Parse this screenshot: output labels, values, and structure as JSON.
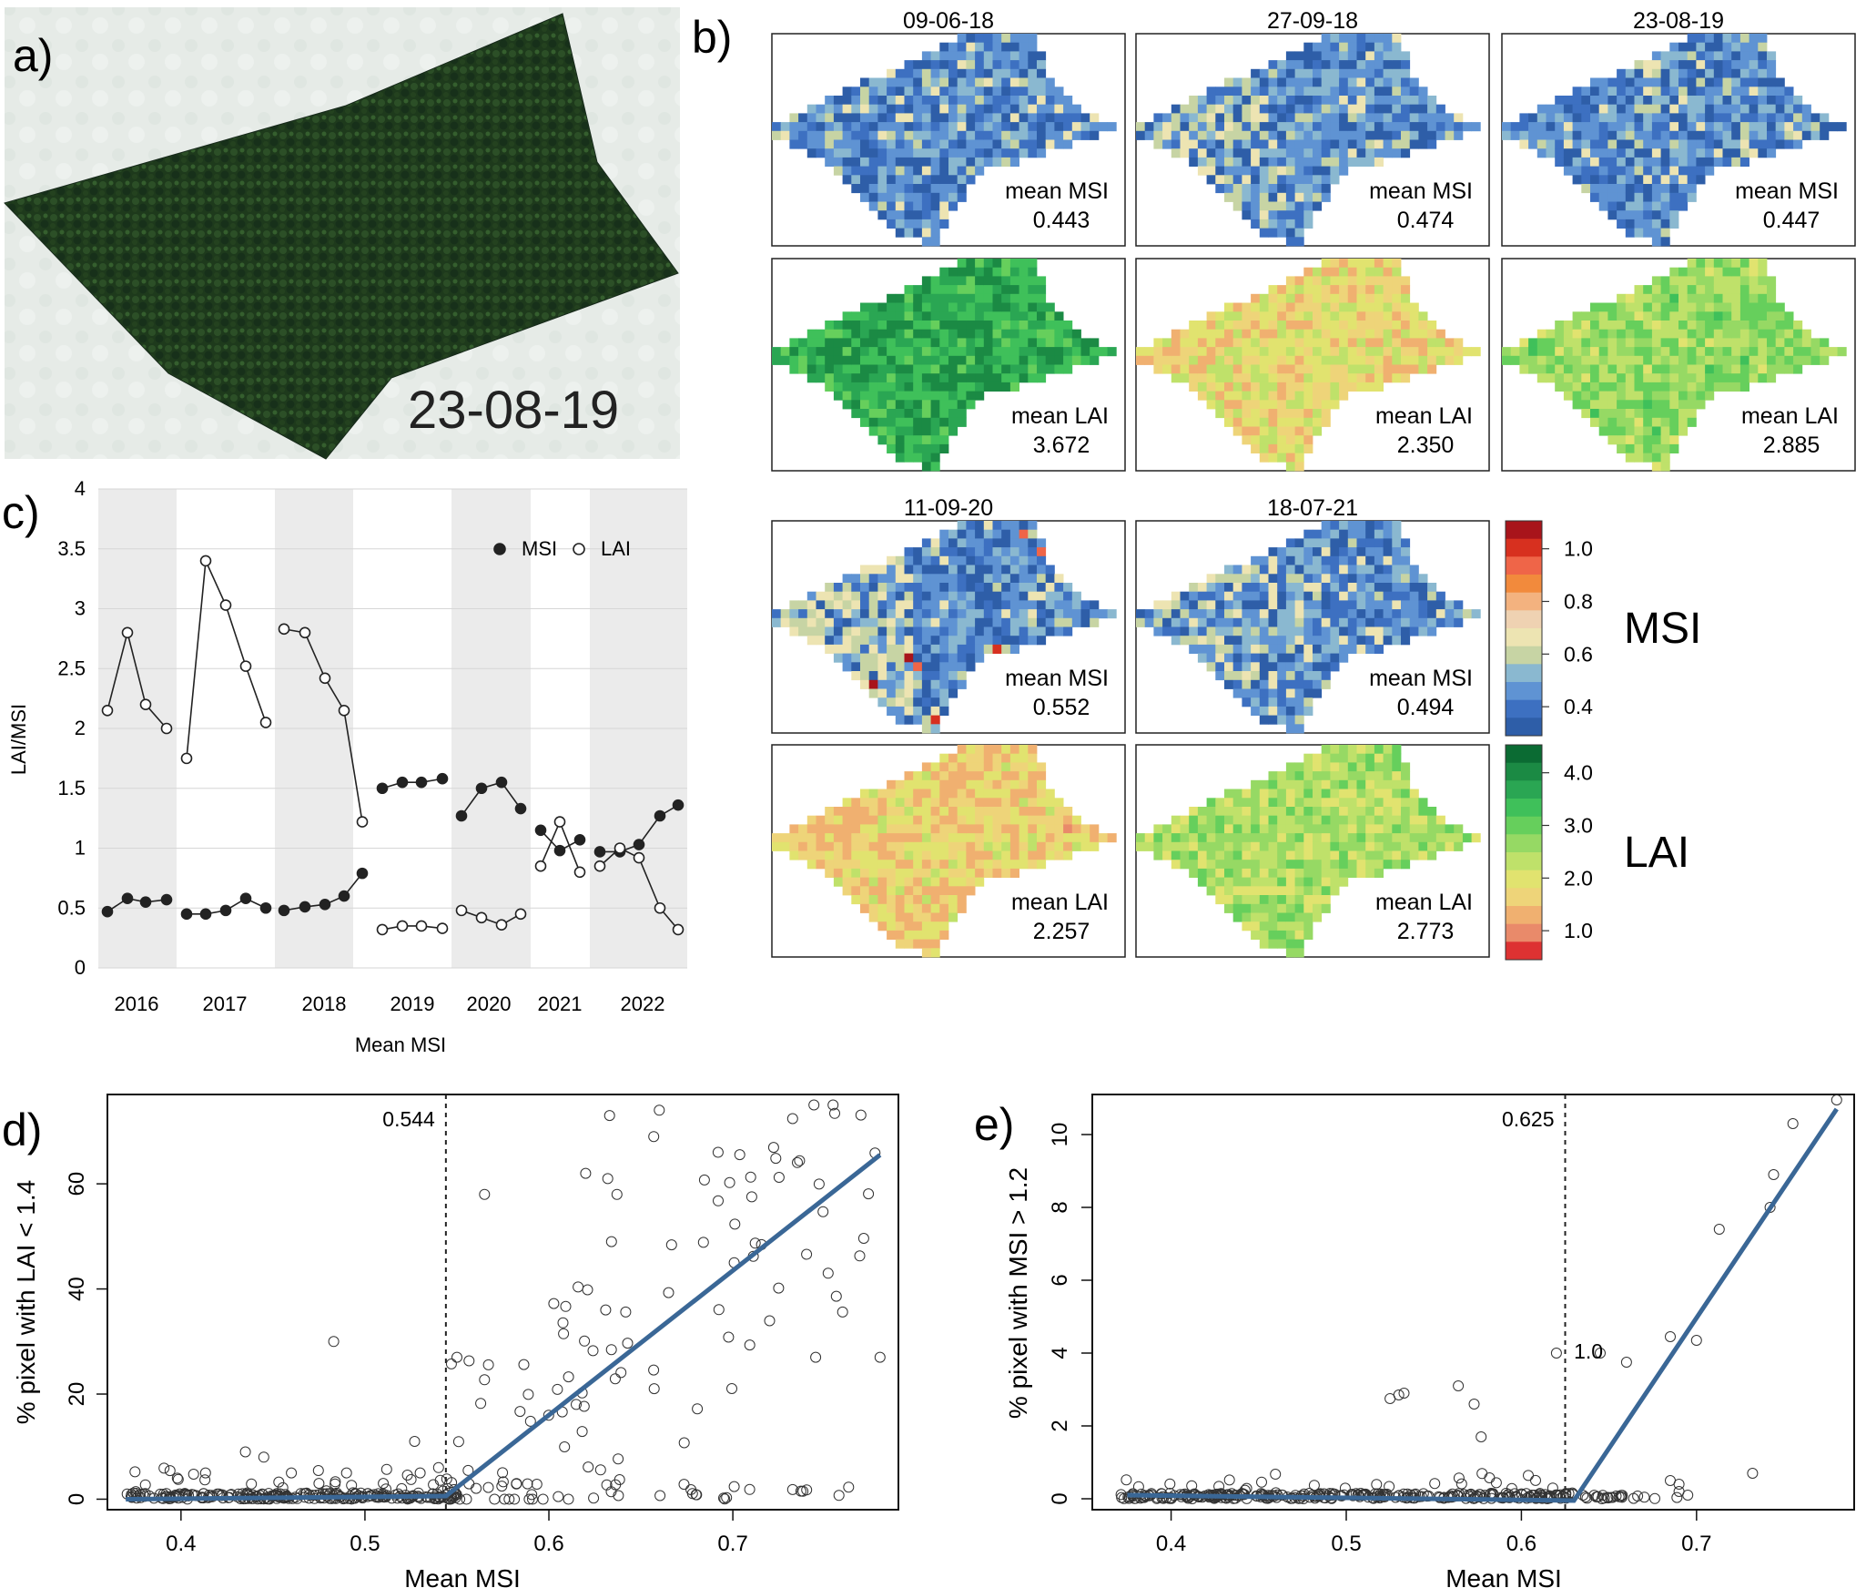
{
  "panels": {
    "a": {
      "letter": "a)",
      "date": "23-08-19"
    },
    "b": {
      "letter": "b)",
      "mean_msi_label": "mean MSI",
      "mean_lai_label": "mean LAI",
      "dates": [
        {
          "date": "09-06-18",
          "msi": "0.443",
          "lai": "3.672"
        },
        {
          "date": "27-09-18",
          "msi": "0.474",
          "lai": "2.350"
        },
        {
          "date": "23-08-19",
          "msi": "0.447",
          "lai": "2.885"
        },
        {
          "date": "11-09-20",
          "msi": "0.552",
          "lai": "2.257"
        },
        {
          "date": "18-07-21",
          "msi": "0.494",
          "lai": "2.773"
        }
      ],
      "msi_legend": {
        "title": "MSI",
        "ticks": [
          "1.0",
          "0.8",
          "0.6",
          "0.4"
        ],
        "colors": [
          "#a8141b",
          "#d7301f",
          "#ef6548",
          "#f28a3c",
          "#f3b27f",
          "#efd2b2",
          "#ede4b2",
          "#c7d4a4",
          "#8ab8d0",
          "#5f93d3",
          "#3d70c1",
          "#2e5ea8"
        ]
      },
      "lai_legend": {
        "title": "LAI",
        "ticks": [
          "4.0",
          "3.0",
          "2.0",
          "1.0"
        ],
        "colors": [
          "#0b6b33",
          "#1b8a44",
          "#2aa653",
          "#3fc05a",
          "#66cf5c",
          "#96d964",
          "#bfe16a",
          "#e1e36f",
          "#eed479",
          "#f0b070",
          "#e98a6a",
          "#dd3232"
        ]
      }
    }
  },
  "chart_data": [
    {
      "id": "c",
      "letter": "c)",
      "type": "line",
      "xlabel": "Mean MSI",
      "ylabel": "LAI/MSI",
      "ylim": [
        0,
        4
      ],
      "yticks": [
        "0",
        "0.5",
        "1",
        "1.5",
        "2",
        "2.5",
        "3",
        "3.5",
        "4"
      ],
      "grid": true,
      "legend_position": "top-right",
      "years": [
        "2016",
        "2017",
        "2018",
        "2019",
        "2020",
        "2021",
        "2022"
      ],
      "series": [
        {
          "name": "MSI",
          "marker": "filled",
          "groups": [
            [
              0.47,
              0.58,
              0.55,
              0.57
            ],
            [
              0.45,
              0.45,
              0.48,
              0.58,
              0.5
            ],
            [
              0.48,
              0.51,
              0.53,
              0.6,
              0.79
            ],
            [
              1.5,
              1.55,
              1.55,
              1.58
            ],
            [
              1.27,
              1.5,
              1.55,
              1.33
            ],
            [
              1.15,
              0.98,
              1.07
            ],
            [
              0.97,
              0.97,
              1.03,
              1.27,
              1.36
            ]
          ]
        },
        {
          "name": "LAI",
          "marker": "open",
          "groups": [
            [
              2.15,
              2.8,
              2.2,
              2.0
            ],
            [
              1.75,
              3.4,
              3.03,
              2.52,
              2.05
            ],
            [
              2.83,
              2.8,
              2.42,
              2.15,
              1.22
            ],
            [
              0.32,
              0.35,
              0.35,
              0.33
            ],
            [
              0.48,
              0.42,
              0.36,
              0.45
            ],
            [
              0.85,
              1.22,
              0.8
            ],
            [
              0.85,
              1.0,
              0.92,
              0.5,
              0.32
            ]
          ]
        }
      ]
    },
    {
      "id": "d",
      "letter": "d)",
      "type": "scatter",
      "xlabel": "Mean MSI",
      "ylabel": "% pixel with LAI < 1.4",
      "xlim": [
        0.36,
        0.79
      ],
      "ylim": [
        -2,
        77
      ],
      "xticks": [
        "0.4",
        "0.5",
        "0.6",
        "0.7"
      ],
      "yticks": [
        "0",
        "20",
        "40",
        "60"
      ],
      "threshold": {
        "x": 0.544,
        "label": "0.544"
      },
      "fit": [
        [
          0.37,
          0
        ],
        [
          0.544,
          0.6
        ],
        [
          0.78,
          65.5
        ]
      ]
    },
    {
      "id": "e",
      "letter": "e)",
      "type": "scatter",
      "xlabel": "Mean MSI",
      "ylabel": "% pixel with MSI > 1.2",
      "xlim": [
        0.355,
        0.79
      ],
      "ylim": [
        -0.3,
        11.1
      ],
      "xticks": [
        "0.4",
        "0.5",
        "0.6",
        "0.7"
      ],
      "yticks": [
        "0",
        "2",
        "4",
        "6",
        "8",
        "10"
      ],
      "threshold": {
        "x": 0.625,
        "label": "0.625"
      },
      "inline_label": {
        "text": "1.0",
        "x": 0.63,
        "y": 3.85
      },
      "fit": [
        [
          0.375,
          0.1
        ],
        [
          0.63,
          -0.05
        ],
        [
          0.78,
          10.7
        ]
      ]
    }
  ]
}
